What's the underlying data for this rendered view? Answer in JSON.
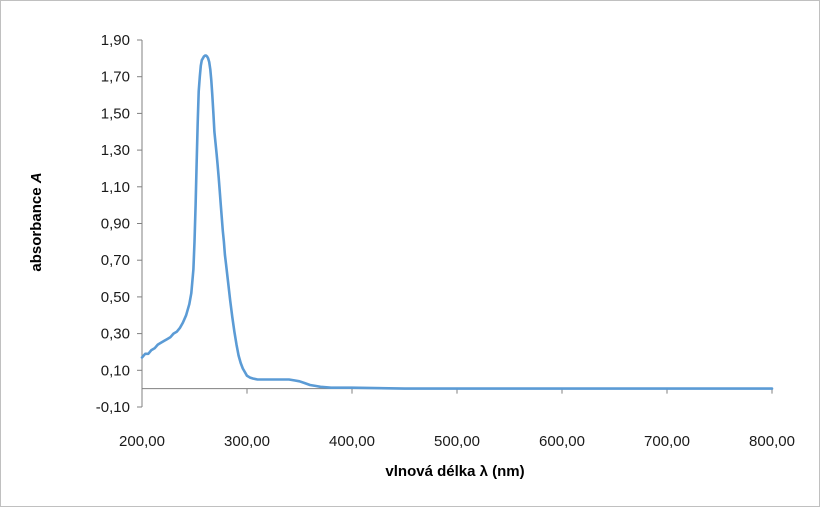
{
  "chart_data": {
    "type": "line",
    "title": "",
    "xlabel": "vlnová délka λ (nm)",
    "ylabel": "absorbance A",
    "ylabel_parts": {
      "text": "absorbance ",
      "symbol": "A"
    },
    "xlim": [
      200,
      800
    ],
    "ylim": [
      -0.1,
      1.9
    ],
    "x_ticks": [
      200,
      300,
      400,
      500,
      600,
      700,
      800
    ],
    "x_tick_labels": [
      "200,00",
      "300,00",
      "400,00",
      "500,00",
      "600,00",
      "700,00",
      "800,00"
    ],
    "y_ticks": [
      -0.1,
      0.1,
      0.3,
      0.5,
      0.7,
      0.9,
      1.1,
      1.3,
      1.5,
      1.7,
      1.9
    ],
    "y_tick_labels": [
      "-0,10",
      "0,10",
      "0,30",
      "0,50",
      "0,70",
      "0,90",
      "1,10",
      "1,30",
      "1,50",
      "1,70",
      "1,90"
    ],
    "grid": false,
    "legend": "none",
    "series_color": "#5b9bd5",
    "series": [
      {
        "x": [
          200,
          203,
          206,
          209,
          212,
          215,
          218,
          221,
          224,
          227,
          230,
          233,
          236,
          239,
          242,
          245,
          247,
          249,
          250,
          251,
          252,
          253,
          254,
          255,
          256,
          257,
          258,
          259,
          260,
          261,
          262,
          263,
          264,
          265,
          266,
          267,
          268,
          269,
          270,
          271,
          272,
          273,
          274,
          275,
          276,
          277,
          278,
          279,
          280,
          282,
          284,
          286,
          288,
          290,
          292,
          294,
          296,
          298,
          300,
          303,
          306,
          310,
          315,
          320,
          330,
          340,
          345,
          350,
          355,
          360,
          365,
          370,
          380,
          390,
          400,
          450,
          500,
          550,
          600,
          650,
          700,
          750,
          800
        ],
        "y": [
          0.17,
          0.19,
          0.19,
          0.21,
          0.22,
          0.24,
          0.25,
          0.26,
          0.27,
          0.28,
          0.3,
          0.31,
          0.33,
          0.36,
          0.4,
          0.46,
          0.52,
          0.65,
          0.8,
          1.0,
          1.22,
          1.45,
          1.62,
          1.7,
          1.76,
          1.79,
          1.8,
          1.81,
          1.815,
          1.815,
          1.81,
          1.8,
          1.78,
          1.74,
          1.68,
          1.6,
          1.5,
          1.4,
          1.34,
          1.28,
          1.22,
          1.15,
          1.08,
          1.0,
          0.93,
          0.86,
          0.8,
          0.73,
          0.68,
          0.58,
          0.48,
          0.39,
          0.31,
          0.24,
          0.18,
          0.14,
          0.11,
          0.09,
          0.07,
          0.06,
          0.055,
          0.05,
          0.05,
          0.05,
          0.05,
          0.05,
          0.045,
          0.04,
          0.03,
          0.02,
          0.015,
          0.01,
          0.005,
          0.005,
          0.005,
          0.0,
          0.0,
          0.0,
          0.0,
          0.0,
          0.0,
          0.0,
          0.0
        ]
      }
    ]
  }
}
